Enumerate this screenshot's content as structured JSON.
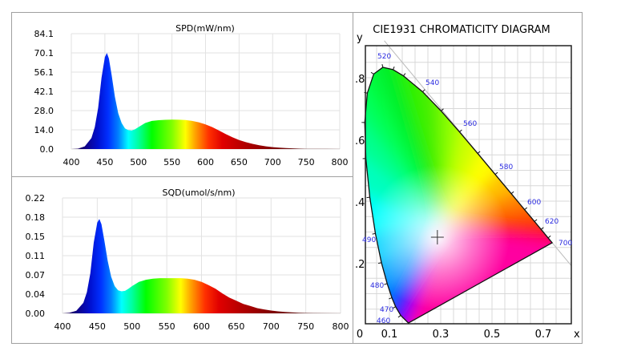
{
  "chart_data": [
    {
      "type": "area",
      "title": "SPD(mW/nm)",
      "xlim": [
        400,
        800
      ],
      "ylim": [
        0,
        84.1
      ],
      "x_ticks": [
        "400",
        "450",
        "500",
        "550",
        "600",
        "650",
        "700",
        "750",
        "800"
      ],
      "y_ticks": [
        "0.0",
        "14.0",
        "28.0",
        "42.1",
        "56.1",
        "70.1",
        "84.1"
      ],
      "grid": true,
      "x": [
        400,
        410,
        420,
        430,
        435,
        440,
        445,
        450,
        453,
        456,
        460,
        465,
        470,
        475,
        480,
        485,
        490,
        495,
        500,
        510,
        520,
        530,
        540,
        550,
        560,
        570,
        580,
        590,
        600,
        610,
        620,
        630,
        640,
        650,
        660,
        670,
        680,
        690,
        700,
        710,
        720,
        730,
        740,
        750,
        760,
        780,
        800
      ],
      "values": [
        0,
        0.3,
        2,
        8,
        16,
        30,
        52,
        67,
        70,
        66,
        54,
        38,
        26,
        19,
        15,
        13.8,
        13.5,
        14.5,
        16,
        19,
        20.5,
        21,
        21.3,
        21.5,
        21.4,
        21.2,
        20.5,
        19.5,
        18,
        16,
        13.5,
        11,
        8.6,
        6.6,
        5,
        3.8,
        2.8,
        2,
        1.4,
        1,
        0.7,
        0.5,
        0.3,
        0.2,
        0.15,
        0.1,
        0.05
      ]
    },
    {
      "type": "area",
      "title": "SQD(umol/s/nm)",
      "xlim": [
        400,
        800
      ],
      "ylim": [
        0,
        0.22
      ],
      "x_ticks": [
        "400",
        "450",
        "500",
        "550",
        "600",
        "650",
        "700",
        "750",
        "800"
      ],
      "y_ticks": [
        "0.00",
        "0.04",
        "0.07",
        "0.11",
        "0.15",
        "0.18",
        "0.22"
      ],
      "grid": true,
      "x": [
        400,
        410,
        420,
        430,
        435,
        440,
        445,
        450,
        453,
        456,
        460,
        465,
        470,
        475,
        480,
        485,
        490,
        495,
        500,
        510,
        520,
        530,
        540,
        550,
        560,
        570,
        580,
        590,
        600,
        610,
        620,
        630,
        640,
        650,
        660,
        670,
        680,
        690,
        700,
        710,
        720,
        730,
        740,
        750,
        760,
        780,
        800
      ],
      "values": [
        0,
        0.001,
        0.005,
        0.02,
        0.04,
        0.076,
        0.135,
        0.173,
        0.18,
        0.17,
        0.14,
        0.1,
        0.07,
        0.052,
        0.044,
        0.042,
        0.043,
        0.047,
        0.052,
        0.06,
        0.064,
        0.066,
        0.067,
        0.067,
        0.067,
        0.067,
        0.066,
        0.064,
        0.06,
        0.054,
        0.047,
        0.038,
        0.03,
        0.024,
        0.018,
        0.014,
        0.01,
        0.0075,
        0.0053,
        0.0038,
        0.0027,
        0.0019,
        0.0012,
        0.0008,
        0.0006,
        0.0004,
        0.0002
      ]
    },
    {
      "type": "scatter",
      "title": "CIE1931 CHROMATICITY DIAGRAM",
      "xlabel": "x",
      "ylabel": "y",
      "xlim": [
        0,
        0.8
      ],
      "ylim": [
        0,
        0.9
      ],
      "x_ticks": [
        "0",
        "0.1",
        "0.3",
        "0.5",
        "0.7"
      ],
      "y_ticks": [
        ".2",
        ".4",
        ".6",
        ".8"
      ],
      "grid": true,
      "wavelength_labels": [
        "460",
        "470",
        "480",
        "490",
        "520",
        "540",
        "560",
        "580",
        "600",
        "620",
        "700"
      ],
      "point": {
        "x": 0.287,
        "y": 0.283
      }
    }
  ],
  "colors": {
    "border": "#a0a0a0",
    "grid": "#dcdcdc",
    "wavelength_label": "#2a2ae0"
  }
}
